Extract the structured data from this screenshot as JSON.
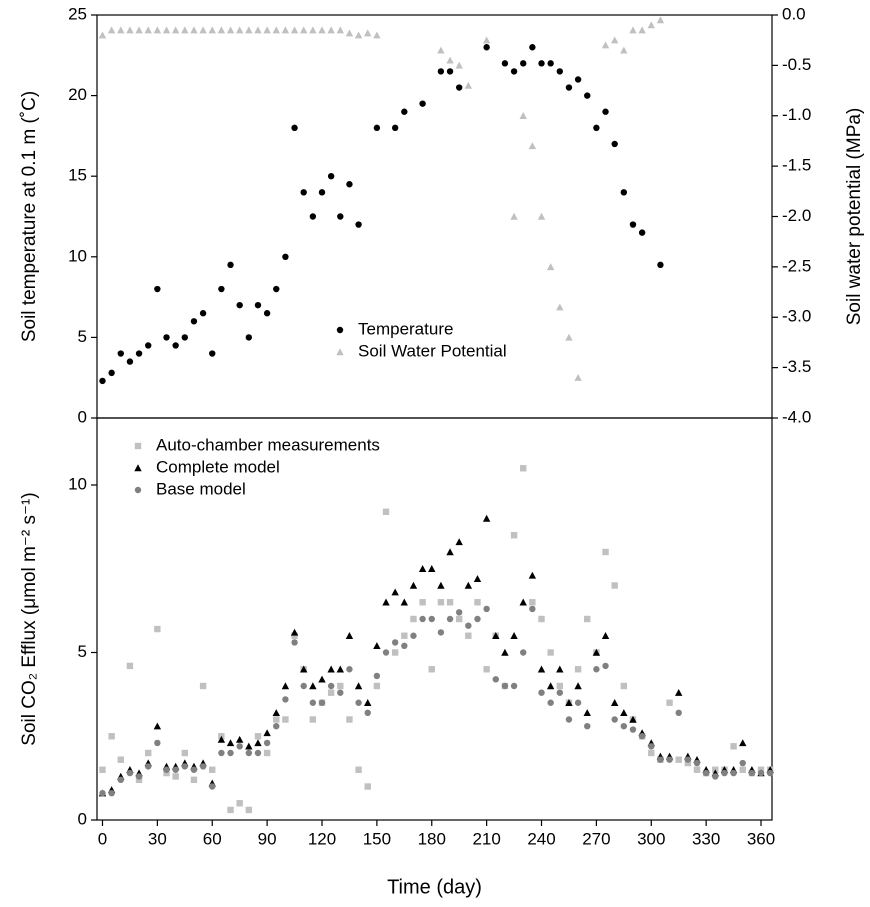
{
  "chart_data": [
    {
      "type": "scatter",
      "ylabel": "Soil temperature at 0.1 m (˚C)",
      "y2label": "Soil water potential (MPa)",
      "xlim": [
        -3,
        366
      ],
      "ylim": [
        0,
        25
      ],
      "yticks": [
        0,
        5,
        10,
        15,
        20,
        25
      ],
      "y2lim": [
        -4,
        0
      ],
      "y2ticks": [
        {
          "value": -4,
          "label": "-4.0"
        },
        -3.5,
        {
          "value": -3,
          "label": "-3.0"
        },
        -2.5,
        {
          "value": -2,
          "label": "-2.0"
        },
        -1.5,
        {
          "value": -1,
          "label": "-1.0"
        },
        -0.5,
        {
          "value": 0,
          "label": "0.0"
        }
      ],
      "legend": "lower center",
      "x": [
        0,
        5,
        10,
        15,
        20,
        25,
        30,
        35,
        40,
        45,
        50,
        55,
        60,
        65,
        70,
        75,
        80,
        85,
        90,
        95,
        100,
        105,
        110,
        115,
        120,
        125,
        130,
        135,
        140,
        145,
        150,
        155,
        160,
        165,
        170,
        175,
        180,
        185,
        190,
        195,
        200,
        205,
        210,
        215,
        220,
        225,
        230,
        235,
        240,
        245,
        250,
        255,
        260,
        265,
        270,
        275,
        280,
        285,
        290,
        295,
        300,
        305
      ],
      "series": [
        {
          "name": "Temperature",
          "color": "#000000",
          "marker": "circle",
          "values": [
            2.3,
            2.8,
            4,
            3.5,
            4,
            4.5,
            8,
            5,
            4.5,
            5,
            6,
            6.5,
            4,
            8,
            9.5,
            7,
            5,
            7,
            6.5,
            8,
            10,
            18,
            14,
            12.5,
            14,
            15,
            12.5,
            14.5,
            12,
            null,
            18,
            null,
            18,
            19,
            null,
            19.5,
            null,
            21.5,
            21.5,
            20.5,
            null,
            null,
            23,
            null,
            22,
            21.5,
            22,
            23,
            22,
            22,
            21.5,
            20.5,
            21,
            20,
            18,
            19,
            17,
            14,
            12,
            11.5,
            null,
            9.5
          ]
        },
        {
          "name": "Soil Water Potential",
          "color": "#c0c0c0",
          "marker": "triangle",
          "axis": "y2",
          "values": [
            -0.2,
            -0.15,
            -0.15,
            -0.15,
            -0.15,
            -0.15,
            -0.15,
            -0.15,
            -0.15,
            -0.15,
            -0.15,
            -0.15,
            -0.15,
            -0.15,
            -0.15,
            -0.15,
            -0.15,
            -0.15,
            -0.15,
            -0.15,
            -0.15,
            -0.15,
            -0.15,
            -0.15,
            -0.15,
            -0.15,
            -0.15,
            -0.18,
            -0.2,
            -0.18,
            -0.2,
            null,
            null,
            null,
            null,
            null,
            null,
            -0.35,
            -0.45,
            -0.5,
            -0.7,
            null,
            -0.25,
            null,
            null,
            -2,
            -1,
            -1.3,
            -2,
            -2.5,
            -2.9,
            -3.2,
            -3.6,
            null,
            null,
            -0.3,
            -0.25,
            -0.35,
            -0.15,
            -0.15,
            -0.1,
            -0.05
          ]
        }
      ]
    },
    {
      "type": "scatter",
      "xlabel": "Time (day)",
      "ylabel": "Soil CO₂ Efflux (μmol m⁻² s⁻¹)",
      "xlim": [
        -3,
        366
      ],
      "xticks": [
        0,
        30,
        60,
        90,
        120,
        150,
        180,
        210,
        240,
        270,
        300,
        330,
        360
      ],
      "ylim": [
        0,
        12
      ],
      "yticks": [
        0,
        5,
        10
      ],
      "legend": "upper left",
      "x": [
        0,
        5,
        10,
        15,
        20,
        25,
        30,
        35,
        40,
        45,
        50,
        55,
        60,
        65,
        70,
        75,
        80,
        85,
        90,
        95,
        100,
        105,
        110,
        115,
        120,
        125,
        130,
        135,
        140,
        145,
        150,
        155,
        160,
        165,
        170,
        175,
        180,
        185,
        190,
        195,
        200,
        205,
        210,
        215,
        220,
        225,
        230,
        235,
        240,
        245,
        250,
        255,
        260,
        265,
        270,
        275,
        280,
        285,
        290,
        295,
        300,
        305,
        310,
        315,
        320,
        325,
        330,
        335,
        340,
        345,
        350,
        355,
        360,
        365
      ],
      "series": [
        {
          "name": "Auto-chamber measurements",
          "color": "#c0c0c0",
          "marker": "square",
          "values": [
            1.5,
            2.5,
            1.8,
            4.6,
            1.2,
            2,
            5.7,
            1.4,
            1.3,
            2,
            1.2,
            4,
            1.5,
            2.5,
            0.3,
            0.5,
            0.3,
            2.5,
            2,
            3,
            3,
            5.5,
            4.5,
            3,
            3.5,
            3.8,
            4,
            3,
            1.5,
            1,
            4,
            9.2,
            5,
            5.5,
            6,
            6.5,
            4.5,
            6.5,
            6.5,
            6,
            5.5,
            6.5,
            4.5,
            5.5,
            4,
            8.5,
            10.5,
            6.5,
            6,
            5,
            4,
            3.5,
            4.5,
            6,
            5,
            8,
            7,
            4,
            3,
            2.5,
            2,
            1.8,
            3.5,
            1.8,
            1.7,
            1.5,
            1.4,
            1.5,
            1.5,
            2.2,
            1.5,
            1.4,
            1.5,
            1.5
          ]
        },
        {
          "name": "Complete model",
          "color": "#000000",
          "marker": "triangle",
          "values": [
            0.8,
            0.9,
            1.3,
            1.5,
            1.4,
            1.7,
            2.8,
            1.6,
            1.6,
            1.7,
            1.6,
            1.7,
            1.1,
            2.4,
            2.3,
            2.4,
            2.2,
            2.3,
            2.6,
            3.2,
            4,
            5.6,
            4.5,
            4,
            4.2,
            4.5,
            4.5,
            5.5,
            4,
            3.5,
            5.2,
            6.5,
            6.8,
            6.5,
            7,
            7.5,
            7.5,
            7,
            8,
            8.3,
            7,
            7.2,
            9,
            5.5,
            5,
            5.5,
            6.5,
            7.3,
            4.5,
            4,
            4.5,
            3.5,
            4,
            3.2,
            5,
            5.5,
            3.5,
            3.2,
            3,
            2.6,
            2.3,
            1.9,
            1.9,
            3.8,
            1.9,
            1.8,
            1.5,
            1.4,
            1.5,
            1.5,
            2.3,
            1.5,
            1.4,
            1.5
          ]
        },
        {
          "name": "Base model",
          "color": "#808080",
          "marker": "circle",
          "values": [
            0.8,
            0.8,
            1.2,
            1.4,
            1.3,
            1.6,
            2.3,
            1.5,
            1.5,
            1.6,
            1.5,
            1.6,
            1,
            2,
            2,
            2.2,
            2,
            2,
            2.3,
            2.8,
            3.6,
            5.3,
            4,
            3.5,
            3.5,
            4,
            3.8,
            4.5,
            3.5,
            3.2,
            4.3,
            5,
            5.3,
            5.2,
            5.5,
            6,
            6,
            5.6,
            6,
            6.2,
            5.8,
            6,
            6.3,
            4.2,
            4,
            4,
            5,
            6.3,
            3.8,
            3.5,
            3.8,
            3,
            3.5,
            2.8,
            4.5,
            4.6,
            3,
            2.8,
            2.7,
            2.5,
            2.2,
            1.8,
            1.8,
            3.2,
            1.8,
            1.7,
            1.4,
            1.3,
            1.4,
            1.4,
            1.7,
            1.4,
            1.4,
            1.4
          ]
        }
      ]
    }
  ]
}
